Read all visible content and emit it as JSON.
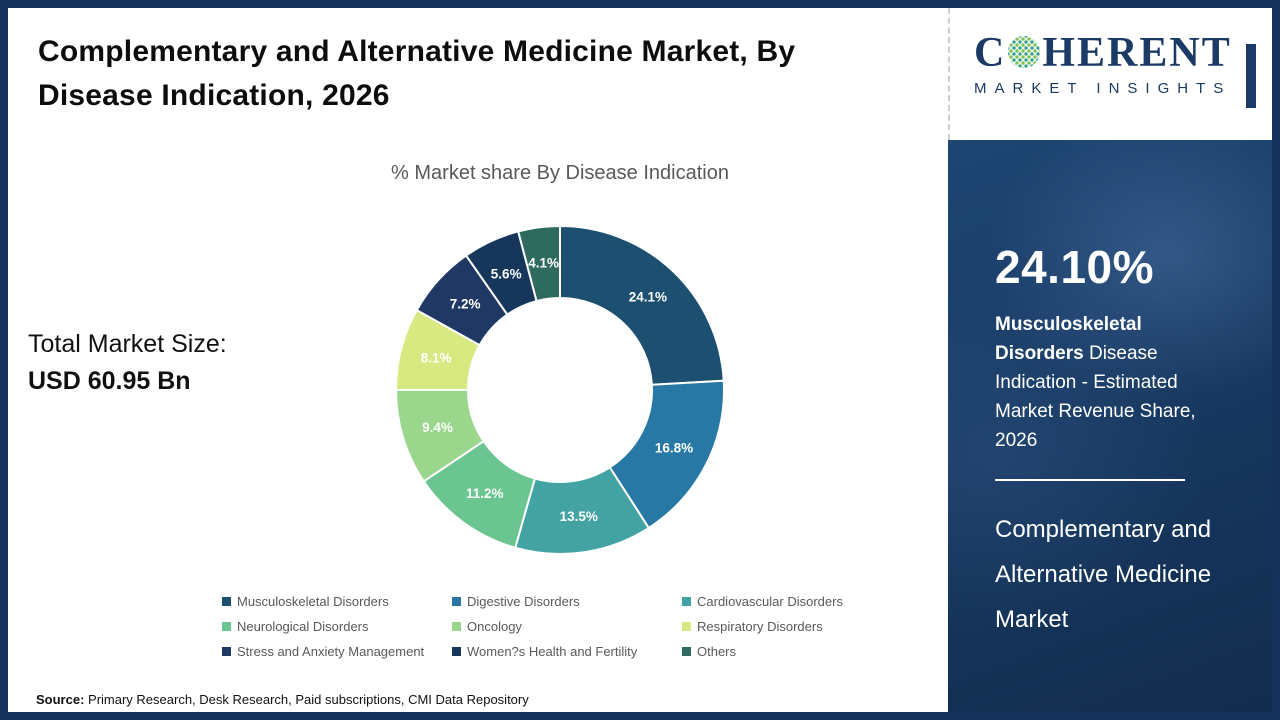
{
  "header": {
    "title": "Complementary and Alternative Medicine Market, By Disease Indication, 2026"
  },
  "logo": {
    "text_before_globe": "C",
    "text_after_globe": "HERENT",
    "tagline": "MARKET INSIGHTS"
  },
  "market_size": {
    "label": "Total Market Size:",
    "value": "USD 60.95 Bn"
  },
  "chart_data": {
    "type": "pie",
    "donut": true,
    "title": "% Market share By Disease Indication",
    "start_angle_deg": 0,
    "direction": "clockwise",
    "legend_position": "bottom",
    "total_label": "USD 60.95 Bn",
    "series": [
      {
        "label": "Musculoskeletal Disorders",
        "value": 24.1,
        "color": "#1D4F70"
      },
      {
        "label": "Digestive Disorders",
        "value": 16.8,
        "color": "#2878A5"
      },
      {
        "label": "Cardiovascular Disorders",
        "value": 13.5,
        "color": "#43A3A3"
      },
      {
        "label": "Neurological Disorders",
        "value": 11.2,
        "color": "#6BC591"
      },
      {
        "label": "Oncology",
        "value": 9.4,
        "color": "#9AD78C"
      },
      {
        "label": "Respiratory Disorders",
        "value": 8.1,
        "color": "#D8E982"
      },
      {
        "label": "Stress and Anxiety Management",
        "value": 7.2,
        "color": "#1F3864"
      },
      {
        "label": "Women?s Health and Fertility",
        "value": 5.6,
        "color": "#16365C"
      },
      {
        "label": "Others",
        "value": 4.1,
        "color": "#2E6B5E"
      }
    ]
  },
  "sidebar": {
    "stat_value": "24.10%",
    "stat_highlight": "Musculoskeletal Disorders",
    "stat_rest": "Disease Indication - Estimated Market Revenue Share, 2026",
    "market_name": "Complementary and Alternative Medicine Market"
  },
  "source": {
    "label": "Source:",
    "text": "Primary Research, Desk Research, Paid subscriptions, CMI Data Repository"
  }
}
